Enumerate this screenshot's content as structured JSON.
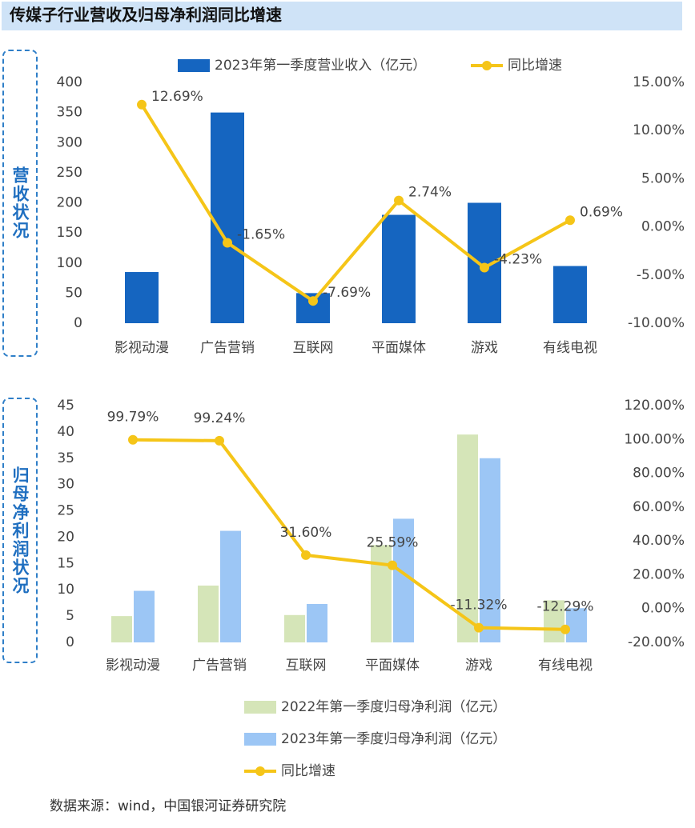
{
  "header": {
    "title": "传媒子行业营收及归母净利润同比增速"
  },
  "side_labels": [
    "营收状况",
    "归母净利润状况"
  ],
  "source": "数据来源：wind，中国银河证券研究院",
  "chart_data": [
    {
      "type": "combo",
      "legend": "top",
      "categories": [
        "影视动漫",
        "广告营销",
        "互联网",
        "平面媒体",
        "游戏",
        "有线电视"
      ],
      "series": [
        {
          "name": "2023年第一季度营业收入（亿元）",
          "type": "bar",
          "color": "#1565c0",
          "values": [
            85,
            350,
            50,
            180,
            200,
            95
          ]
        },
        {
          "name": "同比增速",
          "type": "line",
          "axis": "y2",
          "color": "#f5c518",
          "values": [
            12.69,
            -1.65,
            -7.69,
            2.74,
            -4.23,
            0.69
          ],
          "value_labels": [
            "12.69%",
            "-1.65%",
            "-7.69%",
            "2.74%",
            "-4.23%",
            "0.69%"
          ]
        }
      ],
      "ylim": [
        0,
        400
      ],
      "yticks": [
        0,
        50,
        100,
        150,
        200,
        250,
        300,
        350,
        400
      ],
      "y2lim": [
        -10,
        15
      ],
      "y2ticks": [
        {
          "value": -10,
          "label": "-10.00%"
        },
        {
          "value": -5,
          "label": "-5.00%"
        },
        {
          "value": 0,
          "label": "0.00%"
        },
        {
          "value": 5,
          "label": "5.00%"
        },
        {
          "value": 10,
          "label": "10.00%"
        },
        {
          "value": 15,
          "label": "15.00%"
        }
      ]
    },
    {
      "type": "combo",
      "legend": "bottom",
      "categories": [
        "影视动漫",
        "广告营销",
        "互联网",
        "平面媒体",
        "游戏",
        "有线电视"
      ],
      "series": [
        {
          "name": "2022年第一季度归母净利润（亿元）",
          "type": "bar",
          "color": "#d5e5b8",
          "values": [
            5,
            10.8,
            5.2,
            18.5,
            39.5,
            8
          ]
        },
        {
          "name": "2023年第一季度归母净利润（亿元）",
          "type": "bar",
          "color": "#9cc6f5",
          "values": [
            9.8,
            21.2,
            7.3,
            23.5,
            35,
            6.5
          ]
        },
        {
          "name": "同比增速",
          "type": "line",
          "axis": "y2",
          "color": "#f5c518",
          "values": [
            99.79,
            99.24,
            31.6,
            25.59,
            -11.32,
            -12.29
          ],
          "value_labels": [
            "99.79%",
            "99.24%",
            "31.60%",
            "25.59%",
            "-11.32%",
            "-12.29%"
          ]
        }
      ],
      "ylim": [
        0,
        45
      ],
      "yticks": [
        0,
        5,
        10,
        15,
        20,
        25,
        30,
        35,
        40,
        45
      ],
      "y2lim": [
        -20,
        120
      ],
      "y2ticks": [
        {
          "value": -20,
          "label": "-20.00%"
        },
        {
          "value": 0,
          "label": "0.00%"
        },
        {
          "value": 20,
          "label": "20.00%"
        },
        {
          "value": 40,
          "label": "40.00%"
        },
        {
          "value": 60,
          "label": "60.00%"
        },
        {
          "value": 80,
          "label": "80.00%"
        },
        {
          "value": 100,
          "label": "100.00%"
        },
        {
          "value": 120,
          "label": "120.00%"
        }
      ]
    }
  ]
}
